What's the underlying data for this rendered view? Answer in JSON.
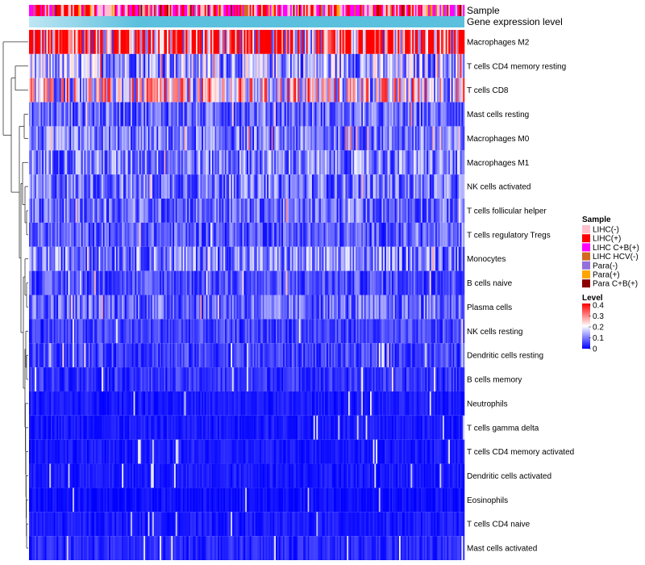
{
  "chart_data": {
    "type": "heatmap",
    "annotation_tracks": [
      "Sample",
      "Gene expression level"
    ],
    "rows": [
      {
        "label": "Macrophages M2",
        "mean": 0.34
      },
      {
        "label": "T cells CD4 memory resting",
        "mean": 0.13
      },
      {
        "label": "T cells CD8",
        "mean": 0.2
      },
      {
        "label": "Mast cells resting",
        "mean": 0.08
      },
      {
        "label": "Macrophages M0",
        "mean": 0.09
      },
      {
        "label": "Macrophages M1",
        "mean": 0.1
      },
      {
        "label": "NK cells activated",
        "mean": 0.09
      },
      {
        "label": "T cells follicular helper",
        "mean": 0.08
      },
      {
        "label": "T cells regulatory  Tregs",
        "mean": 0.07
      },
      {
        "label": "Monocytes",
        "mean": 0.1
      },
      {
        "label": "B cells naive",
        "mean": 0.06
      },
      {
        "label": "Plasma cells",
        "mean": 0.08
      },
      {
        "label": "NK cells resting",
        "mean": 0.05
      },
      {
        "label": "Dendritic cells resting",
        "mean": 0.05
      },
      {
        "label": "B cells memory",
        "mean": 0.04
      },
      {
        "label": "Neutrophils",
        "mean": 0.02
      },
      {
        "label": "T cells gamma delta",
        "mean": 0.02
      },
      {
        "label": "T cells CD4 memory activated",
        "mean": 0.02
      },
      {
        "label": "Dendritic cells activated",
        "mean": 0.02
      },
      {
        "label": "Eosinophils",
        "mean": 0.01
      },
      {
        "label": "T cells CD4 naive",
        "mean": 0.02
      },
      {
        "label": "Mast cells activated",
        "mean": 0.03
      }
    ],
    "sample_legend": {
      "title": "Sample",
      "items": [
        {
          "label": "LIHC(-)",
          "color": "#ffc0cb"
        },
        {
          "label": "LIHC(+)",
          "color": "#ff0000"
        },
        {
          "label": "LIHC C+B(+)",
          "color": "#ff00ff"
        },
        {
          "label": "LIHC HCV(-)",
          "color": "#d2691e"
        },
        {
          "label": "Para(-)",
          "color": "#9370db"
        },
        {
          "label": "Para(+)",
          "color": "#ffa500"
        },
        {
          "label": "Para C+B(+)",
          "color": "#8b0000"
        }
      ]
    },
    "level_legend": {
      "title": "Level",
      "ticks": [
        "0.4",
        "0.3",
        "0.2",
        "0.1",
        "0"
      ],
      "range": [
        0,
        0.4
      ],
      "colors": [
        "#0000ff",
        "#ffffff",
        "#ff0000"
      ]
    },
    "gene_expression_color": "#5bc0de"
  }
}
